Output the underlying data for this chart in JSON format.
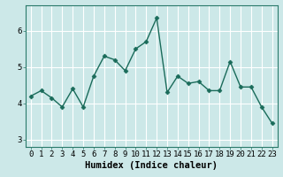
{
  "x": [
    0,
    1,
    2,
    3,
    4,
    5,
    6,
    7,
    8,
    9,
    10,
    11,
    12,
    13,
    14,
    15,
    16,
    17,
    18,
    19,
    20,
    21,
    22,
    23
  ],
  "y": [
    4.2,
    4.35,
    4.15,
    3.9,
    4.4,
    3.9,
    4.75,
    5.3,
    5.2,
    4.9,
    5.5,
    5.7,
    6.35,
    4.3,
    4.75,
    4.55,
    4.6,
    4.35,
    4.35,
    5.15,
    4.45,
    4.45,
    3.9,
    3.45
  ],
  "xlabel": "Humidex (Indice chaleur)",
  "xlim": [
    -0.5,
    23.5
  ],
  "ylim": [
    2.8,
    6.7
  ],
  "yticks": [
    3,
    4,
    5,
    6
  ],
  "xticks": [
    0,
    1,
    2,
    3,
    4,
    5,
    6,
    7,
    8,
    9,
    10,
    11,
    12,
    13,
    14,
    15,
    16,
    17,
    18,
    19,
    20,
    21,
    22,
    23
  ],
  "line_color": "#1a6b5a",
  "marker": "D",
  "marker_size": 2.5,
  "bg_color": "#cce8e8",
  "grid_color": "#ffffff",
  "xlabel_fontsize": 7.5,
  "tick_fontsize": 6.5,
  "spine_color": "#2a7a6a"
}
